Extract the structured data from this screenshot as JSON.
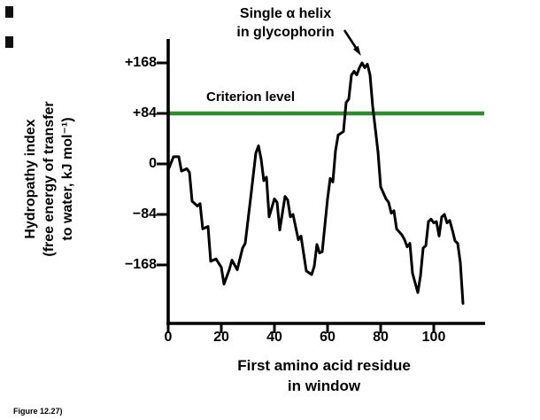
{
  "figure": {
    "annotation_line1": "Single α helix",
    "annotation_line2": "in glycophorin",
    "criterion_label": "Criterion level",
    "y_axis_label_lines": [
      "Hydropathy index",
      "(free energy of transfer",
      "to water, kJ mol⁻¹)"
    ],
    "x_axis_label_lines": [
      "First amino acid residue",
      "in window"
    ],
    "caption": "Figure 12.27)"
  },
  "chart_data": {
    "type": "line",
    "xlabel": "First amino acid residue in window",
    "ylabel": "Hydropathy index (free energy of transfer to water, kJ mol⁻¹)",
    "xlim": [
      0,
      118
    ],
    "ylim": [
      -265,
      200
    ],
    "grid": false,
    "x_ticks": [
      0,
      20,
      40,
      60,
      80,
      100
    ],
    "x_tick_labels": [
      "0",
      "20",
      "40",
      "60",
      "80",
      "100"
    ],
    "y_ticks": [
      168,
      84,
      0,
      -84,
      -168
    ],
    "y_tick_labels": [
      "+168",
      "+84",
      "0",
      "−84",
      "−168"
    ],
    "criterion_level": 84,
    "annotation": {
      "text": "Single α helix in glycophorin",
      "arrow_target_x": 73,
      "arrow_target_y": 168
    },
    "colors": {
      "curve": "#000000",
      "criterion_line": "#2e8b2e",
      "text": "#000000"
    },
    "series": [
      {
        "name": "hydropathy index",
        "points": [
          [
            0,
            -10
          ],
          [
            2,
            12
          ],
          [
            4,
            12
          ],
          [
            5,
            -12
          ],
          [
            7,
            -8
          ],
          [
            8,
            -14
          ],
          [
            9,
            -62
          ],
          [
            11,
            -70
          ],
          [
            12,
            -66
          ],
          [
            13,
            -108
          ],
          [
            15,
            -104
          ],
          [
            16,
            -162
          ],
          [
            18,
            -158
          ],
          [
            20,
            -172
          ],
          [
            21,
            -200
          ],
          [
            23,
            -176
          ],
          [
            24,
            -160
          ],
          [
            26,
            -176
          ],
          [
            28,
            -140
          ],
          [
            29,
            -132
          ],
          [
            31,
            -58
          ],
          [
            33,
            18
          ],
          [
            34,
            30
          ],
          [
            35,
            8
          ],
          [
            36,
            -28
          ],
          [
            37,
            -22
          ],
          [
            38,
            -88
          ],
          [
            40,
            -58
          ],
          [
            41,
            -64
          ],
          [
            42,
            -110
          ],
          [
            44,
            -54
          ],
          [
            45,
            -60
          ],
          [
            46,
            -88
          ],
          [
            47,
            -84
          ],
          [
            49,
            -126
          ],
          [
            50,
            -120
          ],
          [
            52,
            -178
          ],
          [
            54,
            -184
          ],
          [
            55,
            -170
          ],
          [
            56,
            -134
          ],
          [
            57,
            -148
          ],
          [
            58,
            -146
          ],
          [
            60,
            -58
          ],
          [
            61,
            -24
          ],
          [
            62,
            -30
          ],
          [
            63,
            22
          ],
          [
            64,
            48
          ],
          [
            66,
            54
          ],
          [
            67,
            102
          ],
          [
            68,
            108
          ],
          [
            69,
            148
          ],
          [
            70,
            154
          ],
          [
            71,
            148
          ],
          [
            72,
            160
          ],
          [
            73,
            168
          ],
          [
            74,
            160
          ],
          [
            75,
            166
          ],
          [
            76,
            148
          ],
          [
            77,
            96
          ],
          [
            78,
            58
          ],
          [
            79,
            20
          ],
          [
            80,
            -38
          ],
          [
            82,
            -58
          ],
          [
            83,
            -64
          ],
          [
            84,
            -82
          ],
          [
            85,
            -78
          ],
          [
            86,
            -108
          ],
          [
            88,
            -118
          ],
          [
            89,
            -126
          ],
          [
            90,
            -138
          ],
          [
            91,
            -132
          ],
          [
            92,
            -182
          ],
          [
            94,
            -214
          ],
          [
            95,
            -186
          ],
          [
            96,
            -140
          ],
          [
            97,
            -136
          ],
          [
            98,
            -96
          ],
          [
            99,
            -92
          ],
          [
            100,
            -98
          ],
          [
            101,
            -96
          ],
          [
            102,
            -120
          ],
          [
            103,
            -88
          ],
          [
            104,
            -84
          ],
          [
            105,
            -98
          ],
          [
            106,
            -94
          ],
          [
            107,
            -110
          ],
          [
            108,
            -128
          ],
          [
            109,
            -132
          ],
          [
            110,
            -164
          ],
          [
            111,
            -232
          ]
        ]
      }
    ]
  }
}
